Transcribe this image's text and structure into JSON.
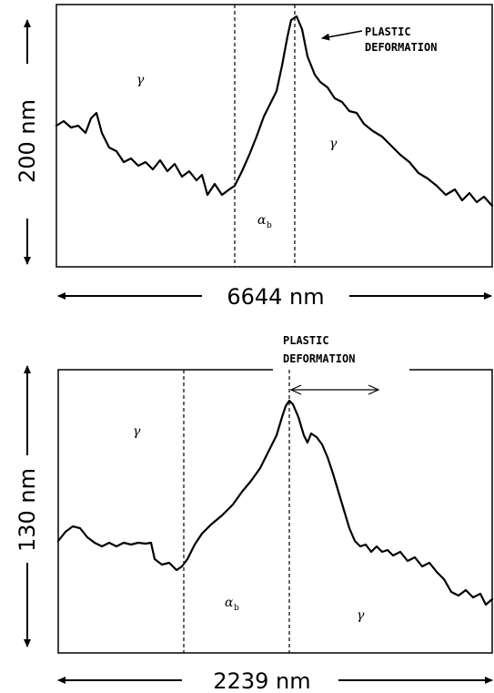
{
  "top_panel": {
    "vertical_scale": "200 nm",
    "horizontal_scale": "6644 nm",
    "callout": [
      "PLASTIC",
      "DEFORMATION"
    ],
    "phases": {
      "left": "γ",
      "middle": "α",
      "middle_sub": "b",
      "right": "γ"
    }
  },
  "bottom_panel": {
    "vertical_scale": "130 nm",
    "horizontal_scale": "2239 nm",
    "callout": [
      "PLASTIC",
      "DEFORMATION"
    ],
    "phases": {
      "left": "γ",
      "middle": "α",
      "middle_sub": "b",
      "right": "γ"
    }
  }
}
